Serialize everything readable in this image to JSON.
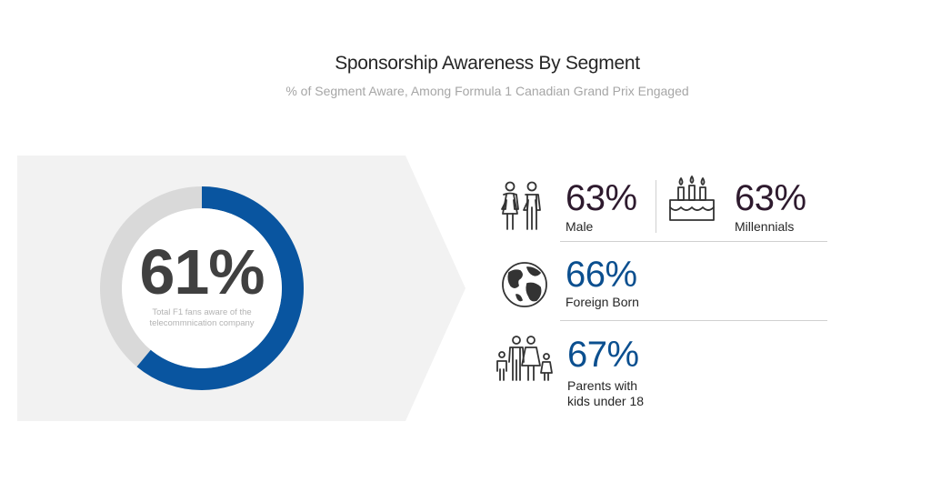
{
  "header": {
    "title": "Sponsorship Awareness By Segment",
    "subtitle": "% of Segment Aware, Among Formula 1 Canadian Grand Prix Engaged"
  },
  "chart_data": {
    "type": "pie",
    "variant": "donut",
    "value_label": "61%",
    "caption": "Total F1 fans aware of the telecommnication company",
    "slices": [
      {
        "value": 61
      },
      {
        "value": 39
      }
    ],
    "colors": {
      "highlight": "#0955a0",
      "remainder": "#d9d9d9"
    }
  },
  "segments": [
    {
      "value": "63%",
      "label": "Male",
      "icon": "couple-icon",
      "color": "#2e1a2e"
    },
    {
      "value": "63%",
      "label": "Millennials",
      "icon": "birthday-cake-icon",
      "color": "#2e1a2e"
    },
    {
      "value": "66%",
      "label": "Foreign Born",
      "icon": "globe-icon",
      "color": "#0b4f8f"
    },
    {
      "value": "67%",
      "label_line1": "Parents with",
      "label_line2": "kids under 18",
      "icon": "family-icon",
      "color": "#0b4f8f"
    }
  ],
  "colors": {
    "panel_bg": "#f2f2f2",
    "text_dark": "#262626",
    "subtitle": "#a6a6a6"
  }
}
